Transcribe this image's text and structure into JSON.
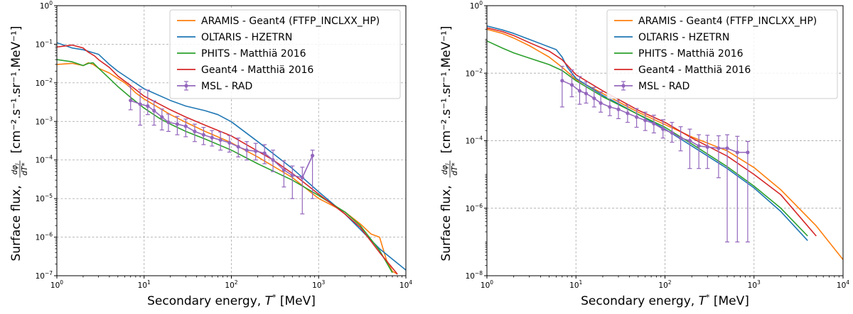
{
  "chart_data": [
    {
      "type": "line",
      "title": "",
      "xscale": "log",
      "yscale": "log",
      "xlim": [
        1,
        10000
      ],
      "ylim": [
        1e-07,
        1
      ],
      "xlabel": {
        "text": "Secondary energy, ",
        "symbol": "T",
        "sup": "*",
        "unit": " [MeV]"
      },
      "ylabel": {
        "text": "Surface flux, ",
        "dphi": "dφ",
        "sub": "l",
        "den": "dT*",
        "unit": "[cm⁻².s⁻¹.sr⁻¹.MeV⁻¹]"
      },
      "x_ticks": [
        {
          "base": "10",
          "exp": "0",
          "value": 1
        },
        {
          "base": "10",
          "exp": "1",
          "value": 10
        },
        {
          "base": "10",
          "exp": "2",
          "value": 100
        },
        {
          "base": "10",
          "exp": "3",
          "value": 1000
        },
        {
          "base": "10",
          "exp": "4",
          "value": 10000
        }
      ],
      "y_ticks": [
        {
          "base": "10",
          "exp": "−7",
          "value": 1e-07
        },
        {
          "base": "10",
          "exp": "−6",
          "value": 1e-06
        },
        {
          "base": "10",
          "exp": "−5",
          "value": 1e-05
        },
        {
          "base": "10",
          "exp": "−4",
          "value": 0.0001
        },
        {
          "base": "10",
          "exp": "−3",
          "value": 0.001
        },
        {
          "base": "10",
          "exp": "−2",
          "value": 0.01
        },
        {
          "base": "10",
          "exp": "−1",
          "value": 0.1
        },
        {
          "base": "10",
          "exp": "0",
          "value": 1
        }
      ],
      "legend_position": "top-right",
      "series": [
        {
          "name": "ARAMIS - Geant4 (FTFP_INCLXX_HP)",
          "color": "#ff7f0e",
          "x": [
            1,
            1.5,
            2,
            2.3,
            2.6,
            3,
            4,
            5,
            6,
            7,
            8,
            10,
            15,
            20,
            30,
            50,
            80,
            100,
            200,
            500,
            1000,
            2000,
            3000,
            4000,
            5000,
            6000,
            7000,
            8000
          ],
          "y": [
            0.03,
            0.032,
            0.028,
            0.033,
            0.03,
            0.024,
            0.018,
            0.013,
            0.01,
            0.0075,
            0.0055,
            0.0038,
            0.0022,
            0.0015,
            0.00095,
            0.00055,
            0.00035,
            0.00028,
            0.00012,
            3.5e-05,
            1e-05,
            4.5e-06,
            2.2e-06,
            1.2e-06,
            1e-06,
            2.5e-07,
            1.3e-07,
            1.1e-07
          ]
        },
        {
          "name": "OLTARIS - HZETRN",
          "color": "#1f77b4",
          "x": [
            1,
            1.5,
            2,
            3,
            4,
            5,
            7,
            10,
            20,
            30,
            50,
            70,
            100,
            200,
            500,
            1000,
            2000,
            5000,
            10000
          ],
          "y": [
            0.11,
            0.08,
            0.072,
            0.055,
            0.03,
            0.02,
            0.012,
            0.007,
            0.0035,
            0.0025,
            0.0019,
            0.0015,
            0.00098,
            0.0003,
            6e-05,
            1.5e-05,
            4e-06,
            5e-07,
            1.4e-07
          ]
        },
        {
          "name": "PHITS - Matthiä 2016",
          "color": "#2ca02c",
          "x": [
            1,
            1.5,
            2,
            2.3,
            2.6,
            3,
            4,
            5,
            7,
            10,
            15,
            20,
            30,
            50,
            100,
            200,
            500,
            1000,
            2000,
            3000,
            5000,
            7000
          ],
          "y": [
            0.04,
            0.035,
            0.028,
            0.032,
            0.033,
            0.024,
            0.013,
            0.008,
            0.0042,
            0.0022,
            0.0012,
            0.00085,
            0.00055,
            0.00035,
            0.00018,
            8e-05,
            3e-05,
            1.2e-05,
            4.5e-06,
            2e-06,
            4.5e-07,
            1.2e-07
          ]
        },
        {
          "name": "Geant4 - Matthiä 2016",
          "color": "#d62728",
          "x": [
            1,
            1.5,
            2,
            2.3,
            2.7,
            3,
            4,
            5,
            7,
            10,
            15,
            20,
            30,
            50,
            100,
            200,
            300,
            500,
            1000,
            2000,
            3000,
            5000,
            8000
          ],
          "y": [
            0.085,
            0.095,
            0.08,
            0.062,
            0.05,
            0.04,
            0.025,
            0.015,
            0.0085,
            0.0045,
            0.0028,
            0.002,
            0.0013,
            0.0008,
            0.00042,
            0.00017,
            0.0001,
            4.5e-05,
            1.3e-05,
            4e-06,
            1.8e-06,
            4e-07,
            1.1e-07
          ]
        },
        {
          "name": "MSL - RAD",
          "color": "#9467bd",
          "errorbars": true,
          "x": [
            7,
            9,
            11,
            13,
            16,
            19,
            24,
            30,
            38,
            48,
            60,
            75,
            95,
            120,
            150,
            190,
            240,
            300,
            400,
            500,
            650,
            850
          ],
          "y": [
            0.0035,
            0.0028,
            0.0025,
            0.0019,
            0.0013,
            0.00095,
            0.00085,
            0.00075,
            0.00055,
            0.00045,
            0.00038,
            0.00033,
            0.00028,
            0.00022,
            0.00018,
            0.00017,
            0.00015,
            0.0001,
            5.5e-05,
            4e-05,
            3.5e-05,
            0.00013
          ],
          "err_lo": [
            0.0015,
            0.002,
            0.001,
            0.0011,
            0.0007,
            0.0004,
            0.0004,
            0.00035,
            0.00025,
            0.0002,
            0.00015,
            0.00015,
            0.00012,
            0.0001,
            8e-05,
            7e-05,
            7e-05,
            5e-05,
            3.5e-05,
            3e-05,
            3.1e-05,
            0.00012
          ],
          "err_hi": [
            0.0045,
            0.004,
            0.004,
            0.0015,
            0.0008,
            0.0006,
            0.0005,
            0.0004,
            0.0003,
            0.00025,
            0.0002,
            0.0002,
            0.00015,
            0.00015,
            0.00012,
            0.0001,
            0.0001,
            8e-05,
            4e-05,
            3e-05,
            3e-05,
            5e-05
          ]
        }
      ]
    },
    {
      "type": "line",
      "title": "",
      "xscale": "log",
      "yscale": "log",
      "xlim": [
        1,
        10000
      ],
      "ylim": [
        1e-08,
        1
      ],
      "xlabel": {
        "text": "Secondary energy, ",
        "symbol": "T",
        "sup": "*",
        "unit": " [MeV]"
      },
      "ylabel": {
        "text": "Surface flux, ",
        "dphi": "dφ",
        "sub": "l",
        "den": "dT*",
        "unit": "[cm⁻².s⁻¹.sr⁻¹.MeV⁻¹]"
      },
      "x_ticks": [
        {
          "base": "10",
          "exp": "0",
          "value": 1
        },
        {
          "base": "10",
          "exp": "1",
          "value": 10
        },
        {
          "base": "10",
          "exp": "2",
          "value": 100
        },
        {
          "base": "10",
          "exp": "3",
          "value": 1000
        },
        {
          "base": "10",
          "exp": "4",
          "value": 10000
        }
      ],
      "y_ticks": [
        {
          "base": "10",
          "exp": "−8",
          "value": 1e-08
        },
        {
          "base": "10",
          "exp": "−6",
          "value": 1e-06
        },
        {
          "base": "10",
          "exp": "−4",
          "value": 0.0001
        },
        {
          "base": "10",
          "exp": "−2",
          "value": 0.01
        },
        {
          "base": "10",
          "exp": "0",
          "value": 1
        }
      ],
      "legend_position": "top-right",
      "series": [
        {
          "name": "ARAMIS - Geant4 (FTFP_INCLXX_HP)",
          "color": "#ff7f0e",
          "x": [
            1,
            1.5,
            2,
            3,
            5,
            7,
            10,
            20,
            50,
            100,
            200,
            500,
            1000,
            2000,
            5000,
            10000
          ],
          "y": [
            0.2,
            0.15,
            0.11,
            0.065,
            0.03,
            0.015,
            0.0065,
            0.0025,
            0.0007,
            0.0003,
            0.00013,
            5e-05,
            1.6e-05,
            3.5e-06,
            3e-07,
            3e-08
          ]
        },
        {
          "name": "OLTARIS - HZETRN",
          "color": "#1f77b4",
          "x": [
            1,
            1.5,
            2,
            3,
            5,
            6,
            7,
            8,
            10,
            20,
            50,
            100,
            200,
            500,
            1000,
            2000,
            4000
          ],
          "y": [
            0.25,
            0.19,
            0.15,
            0.1,
            0.06,
            0.05,
            0.03,
            0.015,
            0.007,
            0.0022,
            0.0006,
            0.00022,
            7e-05,
            1.5e-05,
            4e-06,
            8e-07,
            1.1e-07
          ]
        },
        {
          "name": "PHITS - Matthiä 2016",
          "color": "#2ca02c",
          "x": [
            1,
            1.5,
            2,
            3,
            5,
            7,
            10,
            20,
            50,
            100,
            200,
            500,
            1000,
            2000,
            4000
          ],
          "y": [
            0.09,
            0.055,
            0.04,
            0.028,
            0.018,
            0.012,
            0.006,
            0.002,
            0.0006,
            0.00025,
            8e-05,
            1.7e-05,
            4.5e-06,
            1e-06,
            1.5e-07
          ]
        },
        {
          "name": "Geant4 - Matthiä 2016",
          "color": "#d62728",
          "x": [
            1,
            1.5,
            2,
            3,
            5,
            7,
            10,
            20,
            50,
            100,
            200,
            500,
            1000,
            2000,
            5000
          ],
          "y": [
            0.22,
            0.17,
            0.13,
            0.08,
            0.045,
            0.025,
            0.009,
            0.003,
            0.0008,
            0.00035,
            0.00012,
            3.5e-05,
            1e-05,
            2.5e-06,
            1.5e-07
          ]
        },
        {
          "name": "MSL - RAD",
          "color": "#9467bd",
          "errorbars": true,
          "x": [
            7,
            9,
            11,
            13,
            16,
            19,
            24,
            30,
            38,
            48,
            60,
            75,
            95,
            120,
            150,
            190,
            240,
            300,
            400,
            500,
            650,
            850
          ],
          "y": [
            0.006,
            0.0045,
            0.003,
            0.0025,
            0.0018,
            0.0013,
            0.001,
            0.00085,
            0.00065,
            0.0005,
            0.0004,
            0.00032,
            0.00022,
            0.00017,
            0.00012,
            0.0001,
            7e-05,
            6.5e-05,
            6e-05,
            6e-05,
            4.5e-05,
            4.5e-05
          ],
          "err_lo": [
            0.005,
            0.0025,
            0.0018,
            0.0012,
            0.0008,
            0.0006,
            0.00045,
            0.0004,
            0.0003,
            0.00025,
            0.0002,
            0.00015,
            0.0001,
            8e-05,
            7e-05,
            8.5e-05,
            5.5e-05,
            5e-05,
            5.2e-05,
            5.99e-05,
            4.49e-05,
            4.49e-05
          ],
          "err_hi": [
            0.01,
            0.008,
            0.005,
            0.003,
            0.002,
            0.0015,
            0.001,
            0.0007,
            0.0005,
            0.0004,
            0.0003,
            0.00025,
            0.0002,
            0.00018,
            0.00014,
            0.00012,
            8e-05,
            8e-05,
            8e-05,
            9e-05,
            9e-05,
            5e-05
          ]
        }
      ]
    }
  ]
}
